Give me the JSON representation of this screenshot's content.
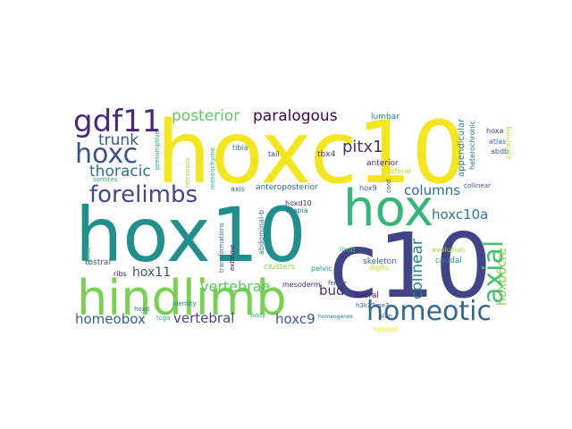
{
  "words": [
    {
      "text": "hoxc10",
      "color": "#f3e51e"
    },
    {
      "text": "hox10",
      "color": "#21908d"
    },
    {
      "text": "c10",
      "color": "#414487"
    },
    {
      "text": "hindlimb",
      "color": "#7ad151"
    },
    {
      "text": "hox",
      "color": "#35b779"
    },
    {
      "text": "homeotic",
      "color": "#31688e"
    },
    {
      "text": "gdf11",
      "color": "#482878"
    },
    {
      "text": "hoxc",
      "color": "#3b528b"
    },
    {
      "text": "forelimbs",
      "color": "#3e4a89"
    },
    {
      "text": "axial",
      "color": "#43bf71"
    },
    {
      "text": "posterior",
      "color": "#5ec962"
    },
    {
      "text": "paralogous",
      "color": "#440154"
    },
    {
      "text": "trunk",
      "color": "#38598c"
    },
    {
      "text": "thoracic",
      "color": "#2c718e"
    },
    {
      "text": "pitx1",
      "color": "#46307e"
    },
    {
      "text": "columns",
      "color": "#2d708e"
    },
    {
      "text": "hoxc10a",
      "color": "#2a788e"
    },
    {
      "text": "colinear",
      "color": "#24878e"
    },
    {
      "text": "hoxb6cre",
      "color": "#86d549"
    },
    {
      "text": "vertebrae",
      "color": "#54c568"
    },
    {
      "text": "bud",
      "color": "#472c7a"
    },
    {
      "text": "homeobox",
      "color": "#33638d"
    },
    {
      "text": "vertebral",
      "color": "#404688"
    },
    {
      "text": "hoxc9",
      "color": "#3a548c"
    },
    {
      "text": "hox11",
      "color": "#3c4f8a"
    },
    {
      "text": "appendicular",
      "color": "#26828e"
    },
    {
      "text": "heterochronic",
      "color": "#2e6e8e"
    },
    {
      "text": "hoxa",
      "color": "#453781"
    },
    {
      "text": "atlas",
      "color": "#2c728e"
    },
    {
      "text": "abdb",
      "color": "#355f8d"
    },
    {
      "text": "patterning",
      "color": "#b5de2b"
    },
    {
      "text": "lumbar",
      "color": "#25848e"
    },
    {
      "text": "tbx4",
      "color": "#3f4889"
    },
    {
      "text": "anterior",
      "color": "#472d7b"
    },
    {
      "text": "lateral",
      "color": "#b8de29"
    },
    {
      "text": "tibia",
      "color": "#2e6f8e"
    },
    {
      "text": "tail",
      "color": "#414387"
    },
    {
      "text": "mesenchyme",
      "color": "#29af7f"
    },
    {
      "text": "presumptive",
      "color": "#20a386"
    },
    {
      "text": "tetrapods",
      "color": "#9bd93c"
    },
    {
      "text": "somites",
      "color": "#26ad81"
    },
    {
      "text": "axis",
      "color": "#365c8d"
    },
    {
      "text": "anteroposterior",
      "color": "#32658e"
    },
    {
      "text": "hoxd10",
      "color": "#482173"
    },
    {
      "text": "tilapia",
      "color": "#2a778e"
    },
    {
      "text": "hox9",
      "color": "#3d4d8a"
    },
    {
      "text": "cord",
      "color": "#34608d"
    },
    {
      "text": "evolution",
      "color": "#a8db34"
    },
    {
      "text": "collinear",
      "color": "#3b528b"
    },
    {
      "text": "skeleton",
      "color": "#31688e"
    },
    {
      "text": "caudal",
      "color": "#21918c"
    },
    {
      "text": "limb",
      "color": "#4ac16d"
    },
    {
      "text": "digits",
      "color": "#c2df23"
    },
    {
      "text": "spinal",
      "color": "#44bf70"
    },
    {
      "text": "rostral",
      "color": "#39558c"
    },
    {
      "text": "transformations",
      "color": "#2f6b8e"
    },
    {
      "text": "extreme",
      "color": "#471063"
    },
    {
      "text": "abdominal-b",
      "color": "#2f6c8e"
    },
    {
      "text": "mesoderm",
      "color": "#481d6f"
    },
    {
      "text": "ribs",
      "color": "#471365"
    },
    {
      "text": "clusters",
      "color": "#8bd646"
    },
    {
      "text": "sacral",
      "color": "#48186a"
    },
    {
      "text": "h3k27me3",
      "color": "#355e8d"
    },
    {
      "text": "pelvic",
      "color": "#1f988b"
    },
    {
      "text": "femur",
      "color": "#3e4989"
    },
    {
      "text": "identity",
      "color": "#27808e"
    },
    {
      "text": "hoxd",
      "color": "#2c728e"
    },
    {
      "text": "body",
      "color": "#34b679"
    },
    {
      "text": "plan",
      "color": "#3a548c"
    },
    {
      "text": "teleost",
      "color": "#f1e51d"
    },
    {
      "text": "tcga",
      "color": "#25ac82"
    },
    {
      "text": "homeogenes",
      "color": "#2a788e"
    }
  ]
}
